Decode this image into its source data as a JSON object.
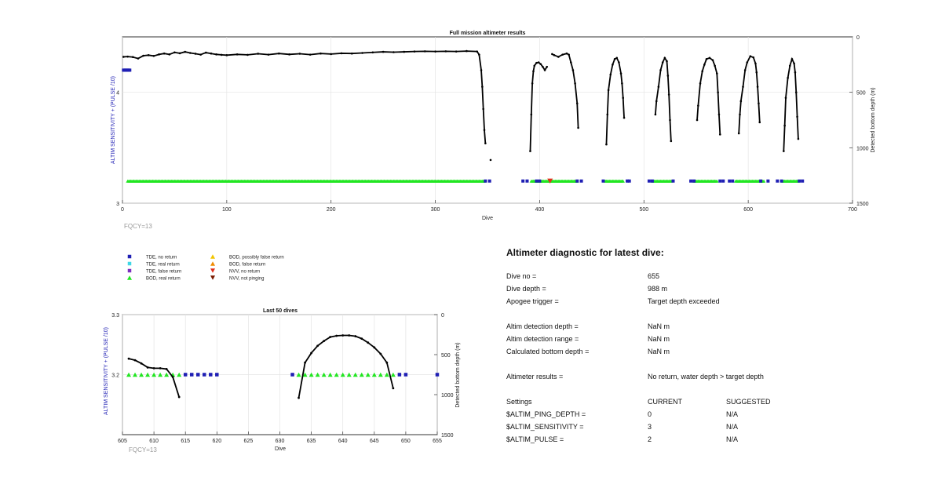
{
  "top_chart": {
    "title": "Full mission altimeter results",
    "xlabel": "Dive",
    "ylabel_left": "ALTIM SENSITIVITY + (PULSE /10)",
    "ylabel_right": "Detected bottom depth (m)",
    "note": "FQCY=13",
    "x_ticks": [
      "0",
      "100",
      "200",
      "300",
      "400",
      "500",
      "600",
      "700"
    ],
    "yl_ticks": [
      "3",
      "4"
    ],
    "yr_ticks": [
      "0",
      "500",
      "1000",
      "1500"
    ]
  },
  "bottom_chart": {
    "title": "Last 50 dives",
    "xlabel": "Dive",
    "ylabel_left": "ALTIM SENSITIVITY + (PULSE /10)",
    "ylabel_right": "Detected bottom depth (m)",
    "note": "FQCY=13",
    "x_ticks": [
      "605",
      "610",
      "615",
      "620",
      "625",
      "630",
      "635",
      "640",
      "645",
      "650",
      "655"
    ],
    "yl_ticks": [
      "3.2",
      "3.3"
    ],
    "yr_ticks": [
      "0",
      "500",
      "1000",
      "1500"
    ]
  },
  "legend": [
    {
      "label": "TDE, no return",
      "marker": "square",
      "color": "#1f1fb4"
    },
    {
      "label": "TDE, real return",
      "marker": "square",
      "color": "#3fd7e6"
    },
    {
      "label": "TDE, false return",
      "marker": "square",
      "color": "#7b2fbf"
    },
    {
      "label": "BOD, real return",
      "marker": "triangle-up",
      "color": "#22e622"
    },
    {
      "label": "BOD, possibly false return",
      "marker": "triangle-up",
      "color": "#f2c500"
    },
    {
      "label": "BOD, false return",
      "marker": "triangle-up",
      "color": "#f08c00"
    },
    {
      "label": "NVV, no return",
      "marker": "triangle-down",
      "color": "#e0301e"
    },
    {
      "label": "NVV, not pinging",
      "marker": "triangle-down",
      "color": "#7a1a00"
    }
  ],
  "diagnostic": {
    "title": "Altimeter diagnostic for latest dive:",
    "rows": [
      {
        "label": "Dive no =",
        "value": "655",
        "suggested": ""
      },
      {
        "label": "Dive depth =",
        "value": "988 m",
        "suggested": ""
      },
      {
        "label": "Apogee trigger =",
        "value": "Target depth exceeded",
        "suggested": ""
      },
      {
        "label": "Altim detection depth =",
        "value": "NaN m",
        "suggested": ""
      },
      {
        "label": "Altim detection range =",
        "value": "NaN m",
        "suggested": ""
      },
      {
        "label": "Calculated bottom depth =",
        "value": "NaN m",
        "suggested": ""
      },
      {
        "label": "Altimeter results =",
        "value": "No return, water depth > target depth",
        "suggested": ""
      },
      {
        "label": "Settings",
        "value": "CURRENT",
        "suggested": "SUGGESTED"
      },
      {
        "label": "$ALTIM_PING_DEPTH =",
        "value": "0",
        "suggested": "N/A"
      },
      {
        "label": "$ALTIM_SENSITIVITY =",
        "value": "3",
        "suggested": "N/A"
      },
      {
        "label": "$ALTIM_PULSE =",
        "value": "2",
        "suggested": "N/A"
      }
    ]
  },
  "chart_data": [
    {
      "type": "scatter",
      "title": "Full mission altimeter results",
      "xlabel": "Dive",
      "ylabel": "ALTIM SENSITIVITY + (PULSE /10)",
      "ylabel_right": "Detected bottom depth (m)",
      "xlim": [
        0,
        700
      ],
      "ylim": [
        3,
        4.5
      ],
      "ylim_right": [
        0,
        1500
      ],
      "right_axis_reversed": true,
      "grid": true,
      "settings_series": [
        {
          "name": "TDE, no return",
          "x_start": 1,
          "x_end": 7,
          "y": 4.2
        },
        {
          "name": "BOD, real return",
          "x_start": 5,
          "x_end": 347,
          "y": 3.2
        },
        {
          "name": "BOD, real return",
          "x_start": 392,
          "x_end": 436,
          "y": 3.2
        },
        {
          "name": "BOD, real return",
          "x_start": 463,
          "x_end": 480,
          "y": 3.2
        },
        {
          "name": "BOD, real return",
          "x_start": 508,
          "x_end": 526,
          "y": 3.2
        },
        {
          "name": "BOD, real return",
          "x_start": 548,
          "x_end": 570,
          "y": 3.2
        },
        {
          "name": "BOD, real return",
          "x_start": 588,
          "x_end": 615,
          "y": 3.2
        },
        {
          "name": "BOD, real return",
          "x_start": 633,
          "x_end": 648,
          "y": 3.2
        }
      ],
      "tde_no_return_dives": [
        348,
        352,
        384,
        388,
        397,
        400,
        436,
        440,
        461,
        484,
        486,
        505,
        508,
        528,
        545,
        548,
        573,
        576,
        582,
        585,
        612,
        619,
        628,
        632,
        649,
        652
      ],
      "nvv_no_return_dives": [
        410
      ],
      "depth_segments": [
        [
          [
            1,
            180
          ],
          [
            5,
            178
          ],
          [
            10,
            182
          ],
          [
            15,
            195
          ],
          [
            20,
            170
          ],
          [
            25,
            165
          ],
          [
            30,
            172
          ],
          [
            35,
            158
          ],
          [
            40,
            150
          ],
          [
            45,
            158
          ],
          [
            50,
            140
          ],
          [
            55,
            148
          ],
          [
            60,
            135
          ],
          [
            65,
            145
          ],
          [
            70,
            152
          ],
          [
            75,
            160
          ],
          [
            80,
            142
          ],
          [
            85,
            150
          ],
          [
            90,
            158
          ],
          [
            95,
            162
          ],
          [
            100,
            165
          ],
          [
            110,
            158
          ],
          [
            120,
            162
          ],
          [
            130,
            152
          ],
          [
            140,
            160
          ],
          [
            150,
            150
          ],
          [
            160,
            158
          ],
          [
            170,
            152
          ],
          [
            180,
            160
          ],
          [
            190,
            150
          ],
          [
            200,
            155
          ],
          [
            210,
            148
          ],
          [
            220,
            150
          ],
          [
            230,
            145
          ],
          [
            240,
            140
          ],
          [
            250,
            135
          ],
          [
            260,
            138
          ],
          [
            270,
            135
          ],
          [
            280,
            132
          ],
          [
            290,
            130
          ],
          [
            300,
            132
          ],
          [
            310,
            130
          ],
          [
            320,
            132
          ],
          [
            330,
            128
          ],
          [
            340,
            132
          ],
          [
            342,
            160
          ],
          [
            344,
            300
          ],
          [
            345,
            450
          ],
          [
            346,
            650
          ],
          [
            347,
            840
          ],
          [
            348,
            960
          ]
        ],
        [
          [
            353,
            1110
          ]
        ],
        [
          [
            391,
            1030
          ],
          [
            392,
            700
          ],
          [
            393,
            420
          ],
          [
            394,
            310
          ],
          [
            395,
            260
          ],
          [
            397,
            235
          ],
          [
            399,
            230
          ],
          [
            401,
            245
          ],
          [
            403,
            270
          ],
          [
            405,
            300
          ],
          [
            407,
            270
          ]
        ],
        [
          [
            412,
            155
          ],
          [
            414,
            165
          ],
          [
            418,
            180
          ],
          [
            422,
            160
          ],
          [
            426,
            150
          ],
          [
            428,
            160
          ],
          [
            430,
            230
          ],
          [
            432,
            300
          ],
          [
            434,
            420
          ],
          [
            436,
            600
          ],
          [
            437,
            820
          ]
        ],
        [
          [
            464,
            970
          ],
          [
            465,
            700
          ],
          [
            466,
            480
          ],
          [
            468,
            340
          ],
          [
            470,
            250
          ],
          [
            472,
            200
          ],
          [
            474,
            190
          ],
          [
            476,
            230
          ],
          [
            478,
            330
          ],
          [
            479,
            420
          ],
          [
            480,
            550
          ],
          [
            481,
            730
          ]
        ],
        [
          [
            511,
            700
          ],
          [
            512,
            580
          ],
          [
            514,
            450
          ],
          [
            516,
            300
          ],
          [
            518,
            230
          ],
          [
            520,
            190
          ],
          [
            522,
            220
          ],
          [
            523,
            350
          ],
          [
            524,
            520
          ],
          [
            525,
            750
          ],
          [
            526,
            940
          ]
        ],
        [
          [
            551,
            750
          ],
          [
            552,
            620
          ],
          [
            554,
            420
          ],
          [
            556,
            310
          ],
          [
            558,
            250
          ],
          [
            560,
            200
          ],
          [
            563,
            190
          ],
          [
            566,
            210
          ],
          [
            568,
            260
          ],
          [
            570,
            330
          ],
          [
            571,
            500
          ],
          [
            572,
            700
          ],
          [
            573,
            880
          ]
        ],
        [
          [
            591,
            870
          ],
          [
            592,
            700
          ],
          [
            593,
            580
          ],
          [
            595,
            450
          ],
          [
            597,
            300
          ],
          [
            599,
            230
          ],
          [
            602,
            175
          ],
          [
            605,
            185
          ],
          [
            607,
            240
          ],
          [
            608,
            320
          ],
          [
            609,
            450
          ],
          [
            610,
            600
          ],
          [
            611,
            770
          ]
        ],
        [
          [
            634,
            1030
          ],
          [
            635,
            800
          ],
          [
            636,
            550
          ],
          [
            638,
            370
          ],
          [
            640,
            260
          ],
          [
            642,
            200
          ],
          [
            644,
            240
          ],
          [
            645,
            320
          ],
          [
            646,
            500
          ],
          [
            647,
            720
          ],
          [
            648,
            920
          ]
        ]
      ]
    },
    {
      "type": "scatter",
      "title": "Last 50 dives",
      "xlabel": "Dive",
      "ylabel": "ALTIM SENSITIVITY + (PULSE /10)",
      "ylabel_right": "Detected bottom depth (m)",
      "xlim": [
        605,
        655
      ],
      "ylim": [
        3.1,
        3.3
      ],
      "ylim_right": [
        0,
        1500
      ],
      "right_axis_reversed": true,
      "grid": true,
      "bod_real_return_dives": [
        606,
        607,
        608,
        609,
        610,
        611,
        612,
        613,
        614,
        633,
        634,
        635,
        636,
        637,
        638,
        639,
        640,
        641,
        642,
        643,
        644,
        645,
        646,
        647,
        648
      ],
      "tde_no_return_dives": [
        615,
        616,
        617,
        618,
        619,
        620,
        632,
        649,
        650,
        655
      ],
      "settings_value": 3.2,
      "depth_segments": [
        [
          [
            606,
            550
          ],
          [
            607,
            570
          ],
          [
            608,
            610
          ],
          [
            609,
            660
          ],
          [
            610,
            670
          ],
          [
            611,
            670
          ],
          [
            612,
            680
          ],
          [
            613,
            780
          ],
          [
            614,
            1030
          ]
        ],
        [
          [
            633,
            1040
          ],
          [
            634,
            600
          ],
          [
            635,
            480
          ],
          [
            636,
            390
          ],
          [
            637,
            330
          ],
          [
            638,
            280
          ],
          [
            639,
            265
          ],
          [
            640,
            260
          ],
          [
            641,
            260
          ],
          [
            642,
            270
          ],
          [
            643,
            300
          ],
          [
            644,
            350
          ],
          [
            645,
            410
          ],
          [
            646,
            490
          ],
          [
            647,
            600
          ],
          [
            648,
            920
          ]
        ]
      ]
    }
  ]
}
